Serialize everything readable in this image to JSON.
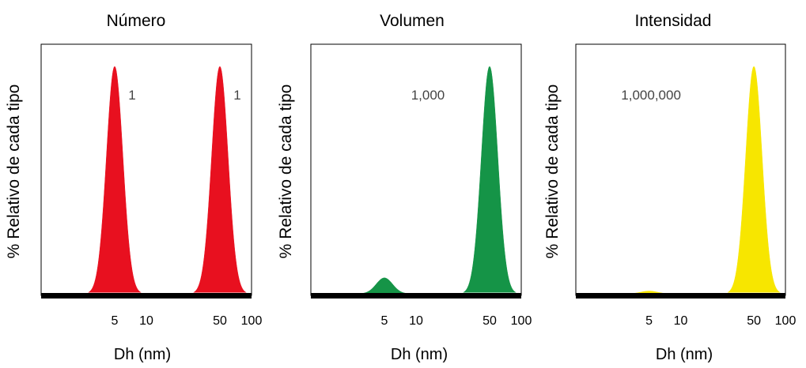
{
  "chart_data": [
    {
      "type": "area",
      "title": "Número",
      "xlabel": "Dh (nm)",
      "ylabel": "% Relativo de cada tipo",
      "x_scale": "log",
      "xlim": [
        1,
        100
      ],
      "xticks": [
        "5",
        "10",
        "50",
        "100"
      ],
      "tick_values": [
        5,
        10,
        50,
        100
      ],
      "color": "#e8101f",
      "peaks": [
        {
          "x": 5,
          "height": 1.0,
          "label": "1"
        },
        {
          "x": 50,
          "height": 1.0,
          "label": "1"
        }
      ]
    },
    {
      "type": "area",
      "title": "Volumen",
      "xlabel": "Dh (nm)",
      "ylabel": "% Relativo de cada tipo",
      "x_scale": "log",
      "xlim": [
        1,
        100
      ],
      "xticks": [
        "5",
        "10",
        "50",
        "100"
      ],
      "tick_values": [
        5,
        10,
        50,
        100
      ],
      "color": "#159447",
      "peaks": [
        {
          "x": 5,
          "height": 0.07,
          "label": ""
        },
        {
          "x": 50,
          "height": 1.0,
          "label": "1,000"
        }
      ]
    },
    {
      "type": "area",
      "title": "Intensidad",
      "xlabel": "Dh (nm)",
      "ylabel": "% Relativo de cada tipo",
      "x_scale": "log",
      "xlim": [
        1,
        100
      ],
      "xticks": [
        "5",
        "10",
        "50",
        "100"
      ],
      "tick_values": [
        5,
        10,
        50,
        100
      ],
      "color": "#f7e600",
      "peaks": [
        {
          "x": 5,
          "height": 0.012,
          "label": ""
        },
        {
          "x": 50,
          "height": 1.0,
          "label": "1,000,000"
        }
      ]
    }
  ]
}
